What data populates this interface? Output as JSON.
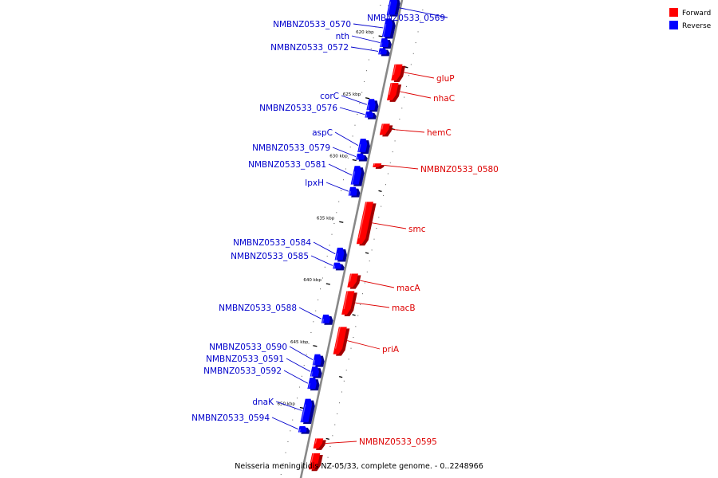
{
  "caption": "Neisseria meningitidis NZ-05/33, complete genome. - 0..2248966",
  "legend": [
    {
      "label": "Forward",
      "color": "#ff0000"
    },
    {
      "label": "Reverse",
      "color": "#0000ff"
    }
  ],
  "colors": {
    "forward": "#ff0000",
    "forward_dark": "#a00000",
    "forward_label": "#dd0000",
    "reverse": "#0000ff",
    "reverse_dark": "#000090",
    "reverse_label": "#0000cc",
    "backbone": "#888888"
  },
  "ticks": [
    {
      "kbp": 620,
      "label": "620 kbp"
    },
    {
      "kbp": 625,
      "label": "625 kbp"
    },
    {
      "kbp": 630,
      "label": "630 kbp"
    },
    {
      "kbp": 635,
      "label": "635 kbp"
    },
    {
      "kbp": 640,
      "label": "640 kbp"
    },
    {
      "kbp": 645,
      "label": "645 kbp"
    },
    {
      "kbp": 650,
      "label": "650 kbp"
    }
  ],
  "genes": [
    {
      "name": "NMBNZ0533_0569",
      "strand": "reverse",
      "start_kbp": 616.8,
      "end_kbp": 618.3
    },
    {
      "name": "NMBNZ0533_0570",
      "strand": "reverse",
      "start_kbp": 618.6,
      "end_kbp": 620.1
    },
    {
      "name": "nth",
      "strand": "reverse",
      "start_kbp": 620.2,
      "end_kbp": 620.9
    },
    {
      "name": "NMBNZ0533_0572",
      "strand": "reverse",
      "start_kbp": 621.0,
      "end_kbp": 621.5
    },
    {
      "name": "gluP",
      "strand": "forward",
      "start_kbp": 622.3,
      "end_kbp": 623.6
    },
    {
      "name": "nhaC",
      "strand": "forward",
      "start_kbp": 623.8,
      "end_kbp": 625.2
    },
    {
      "name": "corC",
      "strand": "reverse",
      "start_kbp": 625.1,
      "end_kbp": 626.0
    },
    {
      "name": "NMBNZ0533_0576",
      "strand": "reverse",
      "start_kbp": 626.1,
      "end_kbp": 626.6
    },
    {
      "name": "hemC",
      "strand": "forward",
      "start_kbp": 627.1,
      "end_kbp": 628.0
    },
    {
      "name": "aspC",
      "strand": "reverse",
      "start_kbp": 628.3,
      "end_kbp": 629.4
    },
    {
      "name": "NMBNZ0533_0579",
      "strand": "reverse",
      "start_kbp": 629.5,
      "end_kbp": 630.0
    },
    {
      "name": "NMBNZ0533_0580",
      "strand": "forward",
      "start_kbp": 630.3,
      "end_kbp": 630.6
    },
    {
      "name": "NMBNZ0533_0581",
      "strand": "reverse",
      "start_kbp": 630.5,
      "end_kbp": 632.0
    },
    {
      "name": "lpxH",
      "strand": "reverse",
      "start_kbp": 632.2,
      "end_kbp": 632.9
    },
    {
      "name": "smc",
      "strand": "forward",
      "start_kbp": 633.4,
      "end_kbp": 636.8
    },
    {
      "name": "NMBNZ0533_0584",
      "strand": "reverse",
      "start_kbp": 637.1,
      "end_kbp": 638.1
    },
    {
      "name": "NMBNZ0533_0585",
      "strand": "reverse",
      "start_kbp": 638.3,
      "end_kbp": 638.8
    },
    {
      "name": "macA",
      "strand": "forward",
      "start_kbp": 639.2,
      "end_kbp": 640.3
    },
    {
      "name": "macB",
      "strand": "forward",
      "start_kbp": 640.6,
      "end_kbp": 642.5
    },
    {
      "name": "NMBNZ0533_0588",
      "strand": "reverse",
      "start_kbp": 642.5,
      "end_kbp": 643.2
    },
    {
      "name": "priA",
      "strand": "forward",
      "start_kbp": 643.5,
      "end_kbp": 645.7
    },
    {
      "name": "NMBNZ0533_0590",
      "strand": "reverse",
      "start_kbp": 645.7,
      "end_kbp": 646.6
    },
    {
      "name": "NMBNZ0533_0591",
      "strand": "reverse",
      "start_kbp": 646.7,
      "end_kbp": 647.5
    },
    {
      "name": "NMBNZ0533_0592",
      "strand": "reverse",
      "start_kbp": 647.6,
      "end_kbp": 648.5
    },
    {
      "name": "dnaK",
      "strand": "reverse",
      "start_kbp": 649.3,
      "end_kbp": 651.2
    },
    {
      "name": "NMBNZ0533_0594",
      "strand": "reverse",
      "start_kbp": 651.5,
      "end_kbp": 652.0
    },
    {
      "name": "NMBNZ0533_0595",
      "strand": "forward",
      "start_kbp": 652.5,
      "end_kbp": 653.3
    },
    {
      "name": "",
      "strand": "forward",
      "start_kbp": 653.7,
      "end_kbp": 655.0
    }
  ]
}
